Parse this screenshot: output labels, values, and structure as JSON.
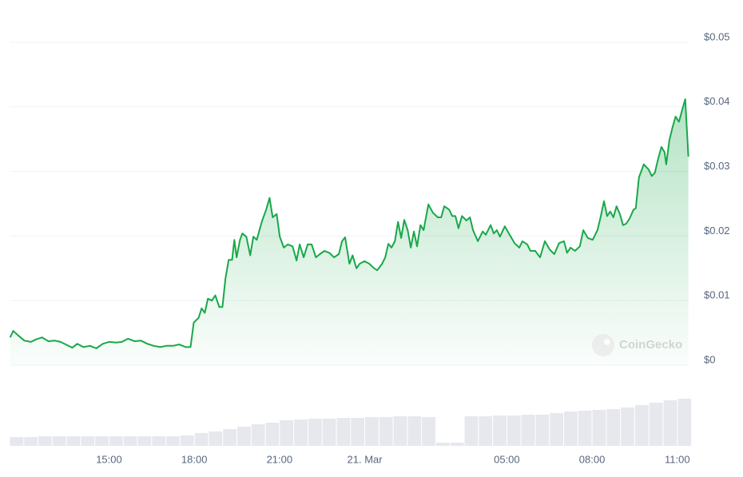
{
  "chart_data": {
    "type": "area",
    "x": [
      -12.48,
      -12.37,
      -12.2,
      -11.98,
      -11.75,
      -11.56,
      -11.36,
      -11.13,
      -10.91,
      -10.71,
      -10.52,
      -10.29,
      -10.12,
      -9.9,
      -9.67,
      -9.45,
      -9.22,
      -9.0,
      -8.75,
      -8.55,
      -8.33,
      -8.1,
      -7.88,
      -7.65,
      -7.43,
      -7.2,
      -6.98,
      -6.75,
      -6.53,
      -6.3,
      -6.13,
      -6.02,
      -5.85,
      -5.74,
      -5.63,
      -5.52,
      -5.38,
      -5.26,
      -5.12,
      -5.01,
      -4.9,
      -4.79,
      -4.67,
      -4.59,
      -4.51,
      -4.39,
      -4.31,
      -4.17,
      -4.03,
      -3.92,
      -3.8,
      -3.72,
      -3.61,
      -3.47,
      -3.35,
      -3.24,
      -3.1,
      -2.99,
      -2.85,
      -2.71,
      -2.54,
      -2.4,
      -2.29,
      -2.15,
      -2.01,
      -1.87,
      -1.72,
      -1.58,
      -1.42,
      -1.25,
      -1.08,
      -0.91,
      -0.8,
      -0.69,
      -0.54,
      -0.43,
      -0.29,
      -0.18,
      -0.01,
      0.16,
      0.33,
      0.44,
      0.61,
      0.72,
      0.83,
      0.94,
      1.06,
      1.17,
      1.28,
      1.39,
      1.51,
      1.62,
      1.73,
      1.84,
      1.96,
      2.07,
      2.24,
      2.4,
      2.57,
      2.69,
      2.8,
      2.97,
      3.08,
      3.19,
      3.3,
      3.42,
      3.58,
      3.7,
      3.81,
      3.98,
      4.15,
      4.26,
      4.43,
      4.54,
      4.65,
      4.76,
      4.93,
      5.1,
      5.27,
      5.44,
      5.55,
      5.72,
      5.83,
      6.0,
      6.17,
      6.34,
      6.51,
      6.67,
      6.84,
      7.01,
      7.12,
      7.24,
      7.4,
      7.57,
      7.69,
      7.85,
      8.02,
      8.19,
      8.3,
      8.42,
      8.53,
      8.64,
      8.75,
      8.86,
      8.98,
      9.09,
      9.2,
      9.32,
      9.46,
      9.54,
      9.65,
      9.82,
      9.99,
      10.1,
      10.21,
      10.33,
      10.44,
      10.55,
      10.61,
      10.72,
      10.83,
      10.94,
      11.06,
      11.17,
      11.28,
      11.39
    ],
    "series": [
      {
        "color": "#18a84a",
        "values": [
          0.0043,
          0.0053,
          0.0046,
          0.0038,
          0.0036,
          0.004,
          0.0043,
          0.0037,
          0.0038,
          0.0036,
          0.0032,
          0.0027,
          0.0033,
          0.0028,
          0.003,
          0.0026,
          0.0033,
          0.0036,
          0.0035,
          0.0036,
          0.0041,
          0.0037,
          0.0038,
          0.0033,
          0.003,
          0.0028,
          0.003,
          0.003,
          0.0032,
          0.0028,
          0.0028,
          0.0066,
          0.0073,
          0.0088,
          0.0081,
          0.0103,
          0.01,
          0.0108,
          0.009,
          0.009,
          0.0135,
          0.0163,
          0.0163,
          0.0194,
          0.0167,
          0.0194,
          0.0204,
          0.0199,
          0.017,
          0.0199,
          0.0194,
          0.0207,
          0.0224,
          0.0241,
          0.0259,
          0.0229,
          0.0234,
          0.0199,
          0.0182,
          0.0187,
          0.0184,
          0.0162,
          0.0187,
          0.0167,
          0.0187,
          0.0187,
          0.0167,
          0.0172,
          0.0177,
          0.0174,
          0.0167,
          0.0172,
          0.0192,
          0.0198,
          0.0157,
          0.017,
          0.015,
          0.0157,
          0.0161,
          0.0157,
          0.015,
          0.0147,
          0.0157,
          0.0167,
          0.0188,
          0.0182,
          0.0192,
          0.0222,
          0.0197,
          0.0225,
          0.0209,
          0.0182,
          0.0207,
          0.0184,
          0.0217,
          0.0209,
          0.0249,
          0.0236,
          0.0229,
          0.0229,
          0.0246,
          0.0241,
          0.0231,
          0.0231,
          0.0212,
          0.0231,
          0.0224,
          0.0229,
          0.0209,
          0.0192,
          0.0207,
          0.0202,
          0.0217,
          0.0204,
          0.0209,
          0.0199,
          0.0215,
          0.0202,
          0.0189,
          0.0182,
          0.0192,
          0.0187,
          0.0177,
          0.0177,
          0.0167,
          0.0192,
          0.0179,
          0.0172,
          0.0189,
          0.0192,
          0.0174,
          0.0182,
          0.0177,
          0.0184,
          0.0209,
          0.0197,
          0.0194,
          0.0209,
          0.0229,
          0.0254,
          0.0231,
          0.0238,
          0.0229,
          0.0246,
          0.0234,
          0.0217,
          0.0219,
          0.0227,
          0.0241,
          0.0243,
          0.0291,
          0.0311,
          0.0303,
          0.0293,
          0.0298,
          0.032,
          0.0338,
          0.033,
          0.0311,
          0.0348,
          0.0368,
          0.0385,
          0.0377,
          0.0395,
          0.0412,
          0.0323
        ]
      }
    ],
    "xlim": [
      -12.5,
      11.4
    ],
    "xticks": [
      {
        "value": -9,
        "label": "15:00"
      },
      {
        "value": -6,
        "label": "18:00"
      },
      {
        "value": -3,
        "label": "21:00"
      },
      {
        "value": 0,
        "label": "21. Mar"
      },
      {
        "value": 5,
        "label": "05:00"
      },
      {
        "value": 8,
        "label": "08:00"
      },
      {
        "value": 11,
        "label": "11:00"
      }
    ],
    "ylim": [
      0,
      0.05
    ],
    "yticks": [
      {
        "value": 0,
        "label": "$0"
      },
      {
        "value": 0.01,
        "label": "$0.01"
      },
      {
        "value": 0.02,
        "label": "$0.02"
      },
      {
        "value": 0.03,
        "label": "$0.03"
      },
      {
        "value": 0.04,
        "label": "$0.04"
      },
      {
        "value": 0.05,
        "label": "$0.05"
      }
    ],
    "grid": true,
    "watermark": "CoinGecko",
    "volume": {
      "color": "#e6e8ee",
      "x": [
        -12.25,
        -11.75,
        -11.25,
        -10.75,
        -10.25,
        -9.75,
        -9.25,
        -8.75,
        -8.25,
        -7.75,
        -7.25,
        -6.75,
        -6.25,
        -5.75,
        -5.25,
        -4.75,
        -4.25,
        -3.75,
        -3.25,
        -2.75,
        -2.25,
        -1.75,
        -1.25,
        -0.75,
        -0.25,
        0.25,
        0.75,
        1.25,
        1.75,
        2.25,
        2.75,
        3.25,
        3.75,
        4.25,
        4.75,
        5.25,
        5.75,
        6.25,
        6.75,
        7.25,
        7.75,
        8.25,
        8.75,
        9.25,
        9.75,
        10.25,
        10.75,
        11.25
      ],
      "values": [
        11,
        11,
        12,
        12,
        12,
        12,
        12,
        12,
        12,
        12,
        12,
        12,
        13,
        16,
        18,
        21,
        24,
        27,
        29,
        32,
        33,
        34,
        34,
        35,
        35,
        36,
        36,
        37,
        37,
        36,
        4,
        4,
        37,
        37,
        38,
        38,
        39,
        39,
        41,
        43,
        44,
        45,
        46,
        48,
        51,
        54,
        57,
        59
      ]
    }
  }
}
